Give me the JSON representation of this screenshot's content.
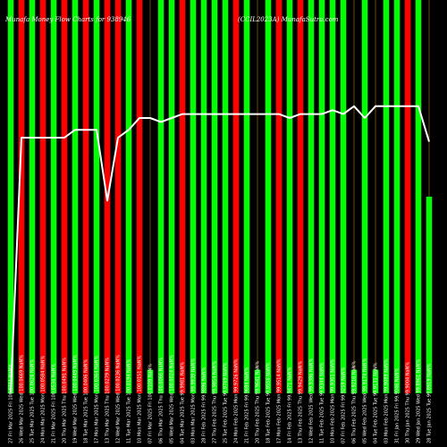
{
  "header": {
    "left": "Munafa Money Flow Charts for 938946",
    "right": "(CCIL2023A) MunafaSutra.com"
  },
  "chart_data": {
    "type": "bar",
    "title": "Munafa Money Flow Charts for 938946",
    "subtitle": "(CCIL2023A) MunafaSutra.com",
    "xlabel": "",
    "ylabel": "",
    "ylim": [
      0,
      100
    ],
    "grid": false,
    "legend": "none",
    "categories": [
      "27 Fri Mar 2025 Fri 100.0711 NaN%",
      "26 Wed Mar 2025 Wed 100.0669 NaN%",
      "25 Tue Mar 2025 Tue 100.0626 NaN%",
      "24 Mon Mar 2025 Mon 100.0584 NaN%",
      "21 Fri Mar 2025 Fri 100.0534 NaN%",
      "20 Thu Mar 2025 Thu 100.0491 NaN%",
      "19 Wed Mar 2025 Wed 100.0449 NaN%",
      "18 Tue Mar 2025 Tue 100.0406 NaN%",
      "17 Mon Mar 2025 Mon 100.0364 NaN%",
      "13 Thu Mar 2025 Thu 100.0279 NaN%",
      "12 Wed Mar 2025 Wed 100.0236 NaN%",
      "11 Tue Mar 2025 Tue 100.0194 NaN%",
      "10 Mon Mar 2025 Mon 100.0151 NaN%",
      "07 Fri Mar 2025 Fri 100.0109 NaN%",
      "06 Thu Mar 2025 Thu 100.0066 NaN%",
      "05 Wed Mar 2025 Wed 100.0024 NaN%",
      "04 Tue Mar 2025 Tue 99.9981 NaN%",
      "03 Mon Mar 2025 Mon 99.9939 NaN%",
      "28 Fri Feb 2025 Fri 99.9896 NaN%",
      "27 Thu Feb 2025 Thu 99.9854 NaN%",
      "25 Tue Feb 2025 Tue 99.9769 NaN%",
      "24 Mon Feb 2025 Mon 99.9726 NaN%",
      "21 Fri Feb 2025 Fri 99.9684 NaN%",
      "20 Thu Feb 2025 Thu 99.9641 NaN%",
      "18 Tue Feb 2025 Tue 99.9556 NaN%",
      "17 Mon Feb 2025 Mon 99.9514 NaN%",
      "14 Fri Feb 2025 Fri 99.9471 NaN%",
      "13 Thu Feb 2025 Thu 99.9429 NaN%",
      "12 Wed Feb 2025 Wed 99.9386 NaN%",
      "11 Tue Feb 2025 Tue 99.9344 NaN%",
      "10 Mon Feb 2025 Mon 99.9301 NaN%",
      "07 Fri Feb 2025 Fri 99.9259 NaN%",
      "06 Thu Feb 2025 Thu 99.9216 NaN%",
      "05 Wed Feb 2025 Wed 99.9174 NaN%",
      "04 Tue Feb 2025 Tue 99.9131 NaN%",
      "03 Mon Feb 2025 Mon 99.9089 NaN%",
      "31 Fri Jan 2025 Fri 99.9046 NaN%",
      "30 Thu Jan 2025 Thu 99.9004 NaN%",
      "29 Wed Jan 2025 Wed 99.8961 NaN%",
      "28 Tue Jan 2025 Tue 99.8919 NaN%"
    ],
    "values": [
      100,
      100,
      100,
      100,
      100,
      100,
      100,
      100,
      100,
      100,
      100,
      100,
      100,
      6,
      100,
      100,
      100,
      100,
      100,
      100,
      100,
      100,
      100,
      6,
      100,
      100,
      100,
      100,
      100,
      100,
      100,
      100,
      6,
      100,
      6,
      100,
      100,
      100,
      100,
      50
    ],
    "colors": [
      "green",
      "red",
      "green",
      "red",
      "green",
      "red",
      "green",
      "red",
      "green",
      "red",
      "red",
      "green",
      "red",
      "green",
      "green",
      "green",
      "red",
      "green",
      "green",
      "green",
      "green",
      "red",
      "green",
      "green",
      "green",
      "red",
      "green",
      "red",
      "green",
      "green",
      "green",
      "green",
      "green",
      "green",
      "green",
      "green",
      "green",
      "red",
      "green",
      "green"
    ],
    "series": [
      {
        "values": [
          0.1,
          65,
          65,
          65,
          65,
          65,
          67,
          67,
          67,
          49,
          65,
          67,
          70,
          70,
          69,
          70,
          71,
          71,
          71,
          71,
          71,
          71,
          71,
          71,
          71,
          71,
          70,
          71,
          71,
          71,
          72,
          71,
          73,
          70,
          73,
          73,
          73,
          73,
          73,
          64
        ]
      }
    ]
  }
}
